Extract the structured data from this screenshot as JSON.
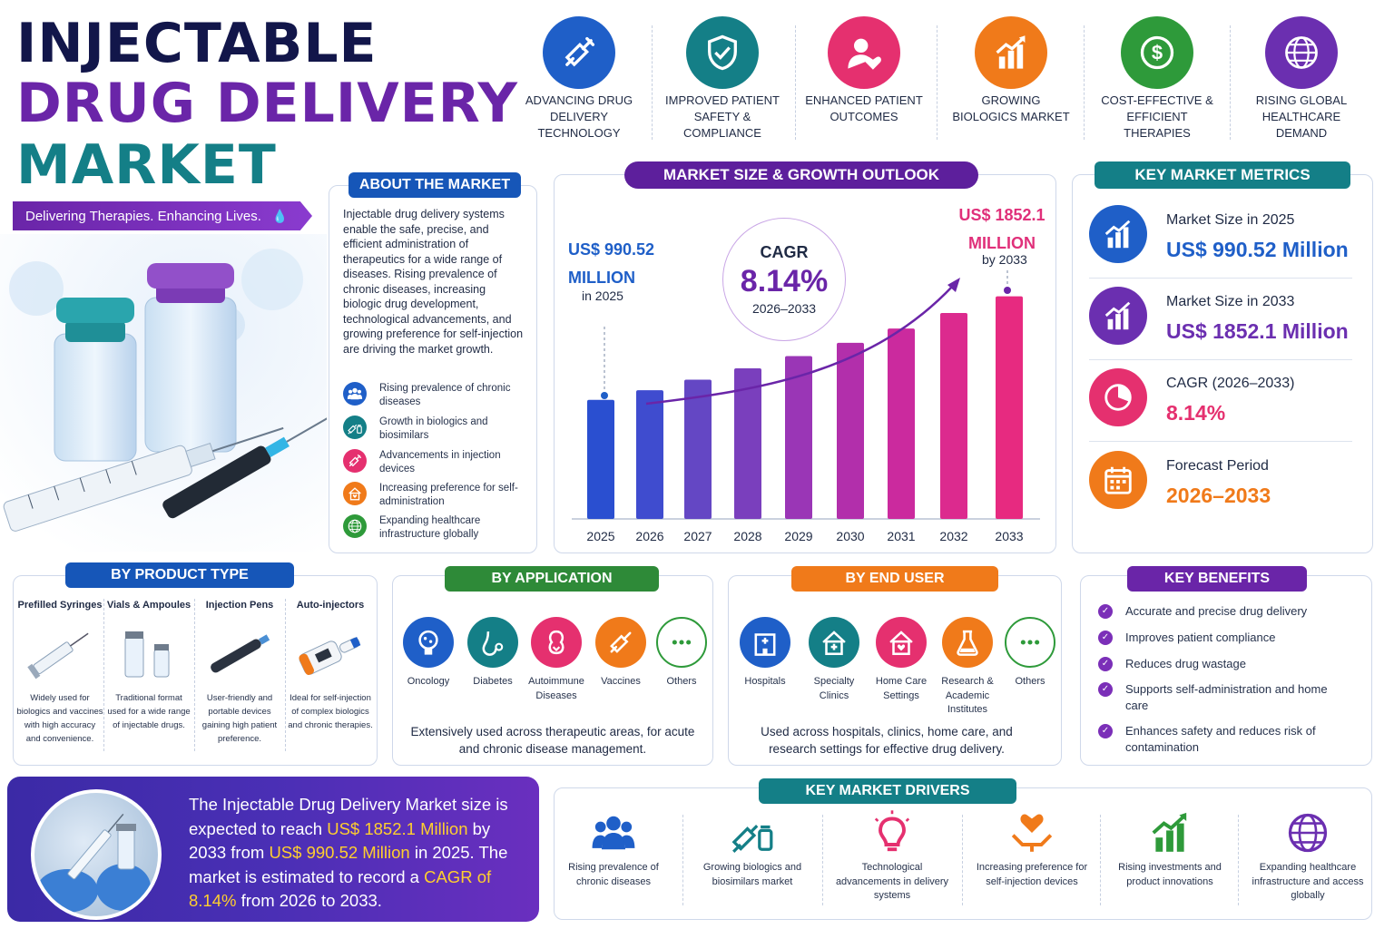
{
  "title": {
    "line1": "INJECTABLE",
    "line2": "DRUG DELIVERY",
    "line3": "MARKET"
  },
  "tagline": "Delivering Therapies. Enhancing Lives.",
  "top_features": [
    {
      "label": "ADVANCING DRUG DELIVERY TECHNOLOGY",
      "icon": "syringe-icon",
      "color": "#1f5fc8"
    },
    {
      "label": "IMPROVED PATIENT SAFETY & COMPLIANCE",
      "icon": "shield-check-icon",
      "color": "#147f87"
    },
    {
      "label": "ENHANCED PATIENT OUTCOMES",
      "icon": "patient-heart-icon",
      "color": "#e5306f"
    },
    {
      "label": "GROWING BIOLOGICS MARKET",
      "icon": "growth-chart-icon",
      "color": "#f07a1a"
    },
    {
      "label": "COST-EFFECTIVE & EFFICIENT THERAPIES",
      "icon": "dollar-icon",
      "color": "#2e9a3a"
    },
    {
      "label": "RISING GLOBAL HEALTHCARE DEMAND",
      "icon": "globe-icon",
      "color": "#6b2fb0"
    }
  ],
  "about": {
    "header": "ABOUT THE MARKET",
    "text": "Injectable drug delivery systems enable the safe, precise, and efficient administration of therapeutics for a wide range of diseases. Rising prevalence of chronic diseases, increasing biologic drug development, technological advancements, and growing preference for self-injection are driving the market growth.",
    "points": [
      {
        "text": "Rising prevalence of chronic diseases",
        "color": "#1f5fc8"
      },
      {
        "text": "Growth in biologics and biosimilars",
        "color": "#147f87"
      },
      {
        "text": "Advancements in injection devices",
        "color": "#e5306f"
      },
      {
        "text": "Increasing preference for self-administration",
        "color": "#f07a1a"
      },
      {
        "text": "Expanding healthcare infrastructure globally",
        "color": "#2e9a3a"
      }
    ]
  },
  "growth": {
    "header": "MARKET SIZE & GROWTH OUTLOOK",
    "start_value": "US$ 990.52 MILLION",
    "start_year": "in 2025",
    "end_value": "US$ 1852.1 MILLION",
    "end_year": "by 2033",
    "cagr_label": "CAGR",
    "cagr_value": "8.14%",
    "cagr_period": "2026–2033"
  },
  "chart_data": {
    "type": "bar",
    "categories": [
      "2025",
      "2026",
      "2027",
      "2028",
      "2029",
      "2030",
      "2031",
      "2032",
      "2033"
    ],
    "values": [
      990.52,
      1071.1,
      1158.3,
      1252.5,
      1354.4,
      1464.6,
      1583.7,
      1712.6,
      1852.1
    ],
    "ylim": [
      0,
      1950
    ]
  },
  "metrics": {
    "header": "KEY MARKET METRICS",
    "items": [
      {
        "label": "Market Size in 2025",
        "value": "US$ 990.52 Million",
        "color": "#1f5fc8",
        "icon": "bar-growth-icon"
      },
      {
        "label": "Market Size in 2033",
        "value": "US$ 1852.1 Million",
        "color": "#6b2fb0",
        "icon": "bar-growth-icon"
      },
      {
        "label": "CAGR (2026–2033)",
        "value": "8.14%",
        "color": "#e5306f",
        "icon": "pie-chart-icon"
      },
      {
        "label": "Forecast Period",
        "value": "2026–2033",
        "color": "#f07a1a",
        "icon": "calendar-icon"
      }
    ]
  },
  "product_type": {
    "header": "BY PRODUCT TYPE",
    "items": [
      {
        "name": "Prefilled Syringes",
        "desc": "Widely used for biologics and vaccines with high accuracy and convenience."
      },
      {
        "name": "Vials & Ampoules",
        "desc": "Traditional format used for a wide range of injectable drugs."
      },
      {
        "name": "Injection Pens",
        "desc": "User-friendly and portable devices gaining high patient preference."
      },
      {
        "name": "Auto-injectors",
        "desc": "Ideal for self-injection of complex biologics and chronic therapies."
      }
    ]
  },
  "application": {
    "header": "BY APPLICATION",
    "items": [
      {
        "name": "Oncology",
        "color": "#1f5fc8",
        "icon": "oncology-icon"
      },
      {
        "name": "Diabetes",
        "color": "#147f87",
        "icon": "diabetes-icon"
      },
      {
        "name": "Autoimmune Diseases",
        "color": "#e5306f",
        "icon": "autoimmune-icon"
      },
      {
        "name": "Vaccines",
        "color": "#f07a1a",
        "icon": "vaccine-icon"
      },
      {
        "name": "Others",
        "color": "#2e9a3a",
        "icon": "more-icon"
      }
    ],
    "note": "Extensively used across therapeutic areas, for acute and chronic disease management."
  },
  "end_user": {
    "header": "BY END USER",
    "items": [
      {
        "name": "Hospitals",
        "color": "#1f5fc8",
        "icon": "hospital-icon"
      },
      {
        "name": "Specialty Clinics",
        "color": "#147f87",
        "icon": "clinic-icon"
      },
      {
        "name": "Home Care Settings",
        "color": "#e5306f",
        "icon": "home-icon"
      },
      {
        "name": "Research & Academic Institutes",
        "color": "#f07a1a",
        "icon": "flask-icon"
      },
      {
        "name": "Others",
        "color": "#2e9a3a",
        "icon": "more-icon"
      }
    ],
    "note": "Used across hospitals, clinics, home care, and research settings for effective drug delivery."
  },
  "benefits": {
    "header": "KEY BENEFITS",
    "items": [
      "Accurate and precise drug delivery",
      "Improves patient compliance",
      "Reduces drug wastage",
      "Supports self-administration and home care",
      "Enhances safety and reduces risk of contamination"
    ]
  },
  "summary": {
    "p1": "The Injectable Drug Delivery Market size is expected to reach ",
    "v1": "US$ 1852.1 Million",
    "p2": " by 2033 from ",
    "v2": "US$ 990.52 Million",
    "p3": " in 2025. The market is estimated to record a ",
    "v3": "CAGR of 8.14%",
    "p4": " from 2026 to 2033."
  },
  "drivers": {
    "header": "KEY MARKET DRIVERS",
    "items": [
      {
        "text": "Rising prevalence of chronic diseases",
        "color": "#1f5fc8",
        "icon": "people-icon"
      },
      {
        "text": "Growing biologics and biosimilars market",
        "color": "#147f87",
        "icon": "syringe-vial-icon"
      },
      {
        "text": "Technological advancements in delivery systems",
        "color": "#e5306f",
        "icon": "lightbulb-icon"
      },
      {
        "text": "Increasing preference for self-injection devices",
        "color": "#f07a1a",
        "icon": "hands-heart-icon"
      },
      {
        "text": "Rising investments and product innovations",
        "color": "#2e9a3a",
        "icon": "growth-chart-icon"
      },
      {
        "text": "Expanding healthcare infrastructure and access globally",
        "color": "#6b2fb0",
        "icon": "globe-icon"
      }
    ]
  }
}
